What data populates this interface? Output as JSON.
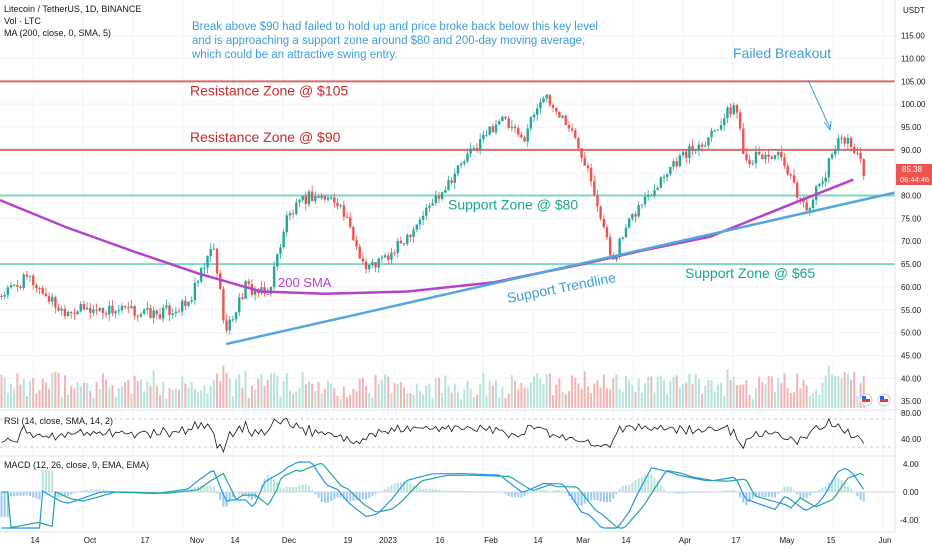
{
  "legend": {
    "symbol": "Litecoin / TetherUS, 1D, BINANCE",
    "vol": "Vol · LTC",
    "ma": "MA (200, close, 0, SMA, 5)"
  },
  "axis": {
    "currency": "USDT",
    "price_ticks": [
      "115.00",
      "110.00",
      "105.00",
      "100.00",
      "95.00",
      "90.00",
      "85.00",
      "80.00",
      "75.00",
      "70.00",
      "65.00",
      "60.00",
      "55.00",
      "50.00",
      "45.00",
      "40.00",
      "35.00"
    ],
    "last_price": "85.38",
    "countdown": "08:44:46",
    "rsi_ticks": [
      "80.00",
      "40.00"
    ],
    "macd_ticks": [
      "4.00",
      "0.00",
      "-4.00"
    ],
    "time_ticks": [
      "14",
      "Oct",
      "17",
      "Nov",
      "14",
      "Dec",
      "19",
      "2023",
      "16",
      "Feb",
      "14",
      "Mar",
      "14",
      "Apr",
      "17",
      "May",
      "15",
      "Jun"
    ]
  },
  "annotations": {
    "note": "Break above $90 had failed to hold up and price broke back below this key level and is approaching a support zone around $80 and 200-day moving average, which could be an attractive swing entry.",
    "failed_breakout": "Failed Breakout",
    "res105": "Resistance Zone @ $105",
    "res90": "Resistance Zone @ $90",
    "sup80": "Support Zone @ $80",
    "sup65": "Support Zone @ $65",
    "sma": "200 SMA",
    "trendline": "Support Trendline"
  },
  "rsi_label": "RSI (14, close, SMA, 14, 2)",
  "macd_label": "MACD (12, 26, close, 9, EMA, EMA)",
  "colors": {
    "up": "#26a69a",
    "down": "#ef5350",
    "sma": "#b542c9",
    "trend": "#55a6dc",
    "resistance": "#d46b6b",
    "support": "#7fd4c4",
    "text_res": "#c42b2b",
    "text_sup": "#1aa58f",
    "text_blue": "#3d9fd9",
    "macd": "#2196f3",
    "signal": "#26a69a"
  },
  "chart_data": {
    "type": "candlestick",
    "symbol": "LTCUSDT",
    "timeframe": "1D",
    "ylim": [
      33,
      118
    ],
    "levels": {
      "resistance": [
        105,
        90
      ],
      "support": [
        80,
        65
      ]
    },
    "sma200": [
      {
        "x": "2022-08-30",
        "y": 79
      },
      {
        "x": "2022-09-20",
        "y": 73
      },
      {
        "x": "2022-10-10",
        "y": 68
      },
      {
        "x": "2022-10-31",
        "y": 63
      },
      {
        "x": "2022-11-20",
        "y": 59
      },
      {
        "x": "2022-12-10",
        "y": 58.5
      },
      {
        "x": "2023-01-05",
        "y": 59
      },
      {
        "x": "2023-02-01",
        "y": 61
      },
      {
        "x": "2023-03-01",
        "y": 65
      },
      {
        "x": "2023-03-20",
        "y": 68
      },
      {
        "x": "2023-04-10",
        "y": 71
      },
      {
        "x": "2023-05-05",
        "y": 78
      },
      {
        "x": "2023-05-25",
        "y": 83.5
      }
    ],
    "trendline": [
      {
        "x": "2022-11-09",
        "y": 47.5
      },
      {
        "x": "2023-05-28",
        "y": 80
      }
    ],
    "price_path": [
      {
        "x": "2022-08-30",
        "y": 58
      },
      {
        "x": "2022-09-08",
        "y": 62
      },
      {
        "x": "2022-09-18",
        "y": 55
      },
      {
        "x": "2022-10-05",
        "y": 55
      },
      {
        "x": "2022-10-18",
        "y": 54
      },
      {
        "x": "2022-10-28",
        "y": 56
      },
      {
        "x": "2022-11-05",
        "y": 69
      },
      {
        "x": "2022-11-09",
        "y": 50
      },
      {
        "x": "2022-11-15",
        "y": 60
      },
      {
        "x": "2022-11-22",
        "y": 58
      },
      {
        "x": "2022-11-28",
        "y": 75
      },
      {
        "x": "2022-12-05",
        "y": 80
      },
      {
        "x": "2022-12-14",
        "y": 79
      },
      {
        "x": "2022-12-23",
        "y": 64
      },
      {
        "x": "2022-12-31",
        "y": 67
      },
      {
        "x": "2023-01-10",
        "y": 76
      },
      {
        "x": "2023-01-22",
        "y": 87
      },
      {
        "x": "2023-02-03",
        "y": 97
      },
      {
        "x": "2023-02-10",
        "y": 92
      },
      {
        "x": "2023-02-16",
        "y": 102
      },
      {
        "x": "2023-02-24",
        "y": 96
      },
      {
        "x": "2023-03-03",
        "y": 86
      },
      {
        "x": "2023-03-10",
        "y": 66
      },
      {
        "x": "2023-03-18",
        "y": 77
      },
      {
        "x": "2023-03-29",
        "y": 87
      },
      {
        "x": "2023-04-08",
        "y": 92
      },
      {
        "x": "2023-04-18",
        "y": 100
      },
      {
        "x": "2023-04-21",
        "y": 88
      },
      {
        "x": "2023-05-01",
        "y": 89
      },
      {
        "x": "2023-05-10",
        "y": 77
      },
      {
        "x": "2023-05-16",
        "y": 84
      },
      {
        "x": "2023-05-20",
        "y": 93
      },
      {
        "x": "2023-05-25",
        "y": 91
      },
      {
        "x": "2023-05-28",
        "y": 85.38
      }
    ]
  }
}
